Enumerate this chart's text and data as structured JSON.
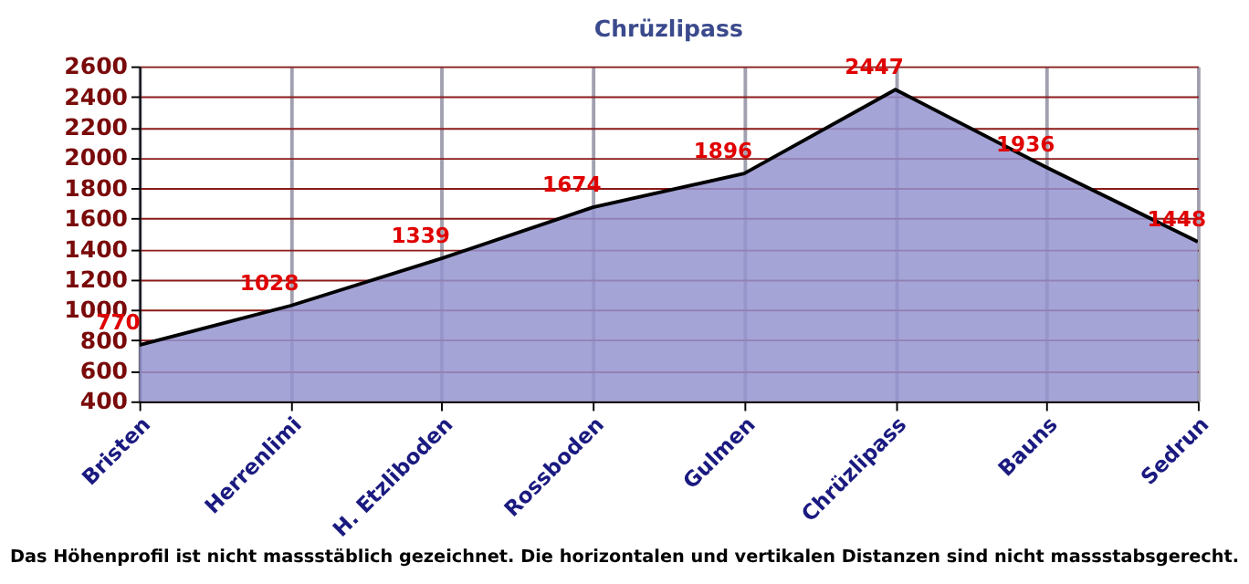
{
  "chart_data": {
    "type": "area",
    "title": "Chrüzlipass",
    "categories": [
      "Bristen",
      "Herrenlimi",
      "H. Etzliboden",
      "Rossboden",
      "Gulmen",
      "Chrüzlipass",
      "Bauns",
      "Sedrun"
    ],
    "series": [
      {
        "color": "#9494d0",
        "values": [
          770,
          1028,
          1339,
          1674,
          1896,
          2447,
          1936,
          1448
        ]
      }
    ],
    "ylim": [
      400,
      2600
    ],
    "yticks": [
      400,
      600,
      800,
      1000,
      1200,
      1400,
      1600,
      1800,
      2000,
      2200,
      2400,
      2600
    ],
    "grid": true,
    "data_labels": true,
    "annotations": [
      "Das Höhenprofil ist nicht massstäblich gezeichnet. Die horizontalen und vertikalen Distanzen sind nicht massstabsgerecht."
    ]
  }
}
